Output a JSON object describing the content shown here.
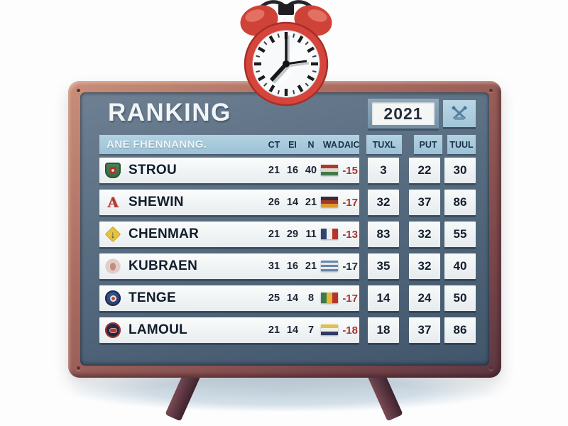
{
  "board": {
    "title": "RANKING",
    "year": "2021",
    "emblem": "crossed-crest-icon"
  },
  "table": {
    "name_header": "ANE FHENNANNG.",
    "stat_headers": [
      "CT",
      "EI",
      "N",
      "WA",
      "DAIC"
    ],
    "score_headers": [
      "TUXL",
      "PUT",
      "TUUL"
    ],
    "rows": [
      {
        "name": "STROU",
        "crest": "shield",
        "stats": [
          "21",
          "16",
          "40"
        ],
        "diff": "-15",
        "diff_color": "#a8322c",
        "flag": {
          "name": "red-white-green-flag",
          "orientation": "horizontal",
          "stripes": [
            "#b0372e",
            "#ded8cc",
            "#3e7a4a"
          ]
        },
        "scores": [
          "3",
          "22",
          "30"
        ]
      },
      {
        "name": "SHEWIN",
        "crest": "letter",
        "stats": [
          "26",
          "14",
          "21"
        ],
        "diff": "-17",
        "diff_color": "#a8322c",
        "flag": {
          "name": "black-red-gold-flag",
          "orientation": "horizontal",
          "stripes": [
            "#332f2e",
            "#a8322c",
            "#d99a33"
          ]
        },
        "scores": [
          "32",
          "37",
          "86"
        ]
      },
      {
        "name": "CHENMAR",
        "crest": "diamond",
        "stats": [
          "21",
          "29",
          "11"
        ],
        "diff": "-13",
        "diff_color": "#a8322c",
        "flag": {
          "name": "blue-white-red-flag",
          "orientation": "vertical",
          "stripes": [
            "#32436e",
            "#eef0ee",
            "#b5342c"
          ]
        },
        "scores": [
          "83",
          "32",
          "55"
        ]
      },
      {
        "name": "KUBRAEN",
        "crest": "faded",
        "stats": [
          "31",
          "16",
          "21"
        ],
        "diff": "-17",
        "diff_color": "#1a2736",
        "flag": {
          "name": "blue-white-striped-flag",
          "orientation": "horizontal",
          "stripes": [
            "#6a87ae",
            "#e8eaea",
            "#6a87ae",
            "#e8eaea",
            "#6a87ae"
          ]
        },
        "scores": [
          "35",
          "32",
          "40"
        ]
      },
      {
        "name": "TENGE",
        "crest": "roundblue",
        "stats": [
          "25",
          "14",
          "8"
        ],
        "diff": "-17",
        "diff_color": "#a8322c",
        "flag": {
          "name": "green-yellow-red-flag",
          "orientation": "vertical",
          "stripes": [
            "#3e7a4a",
            "#e3b93a",
            "#b5342c"
          ]
        },
        "scores": [
          "14",
          "24",
          "50"
        ]
      },
      {
        "name": "LAMOUL",
        "crest": "roundred",
        "stats": [
          "21",
          "14",
          "7"
        ],
        "diff": "-18",
        "diff_color": "#a8322c",
        "flag": {
          "name": "yellow-white-navy-flag",
          "orientation": "horizontal",
          "stripes": [
            "#e3c04a",
            "#f0efe9",
            "#2e3a63"
          ]
        },
        "scores": [
          "18",
          "37",
          "86"
        ]
      }
    ]
  },
  "colors": {
    "frame": "#9a6253",
    "panel_top": "#6e8092",
    "panel_bottom": "#41556b",
    "header_bar": "#a7c9da",
    "row_bg": "#f3f5f6",
    "accent_red": "#a8322c",
    "text_dark": "#1a2736",
    "clock_red": "#d6453b"
  }
}
